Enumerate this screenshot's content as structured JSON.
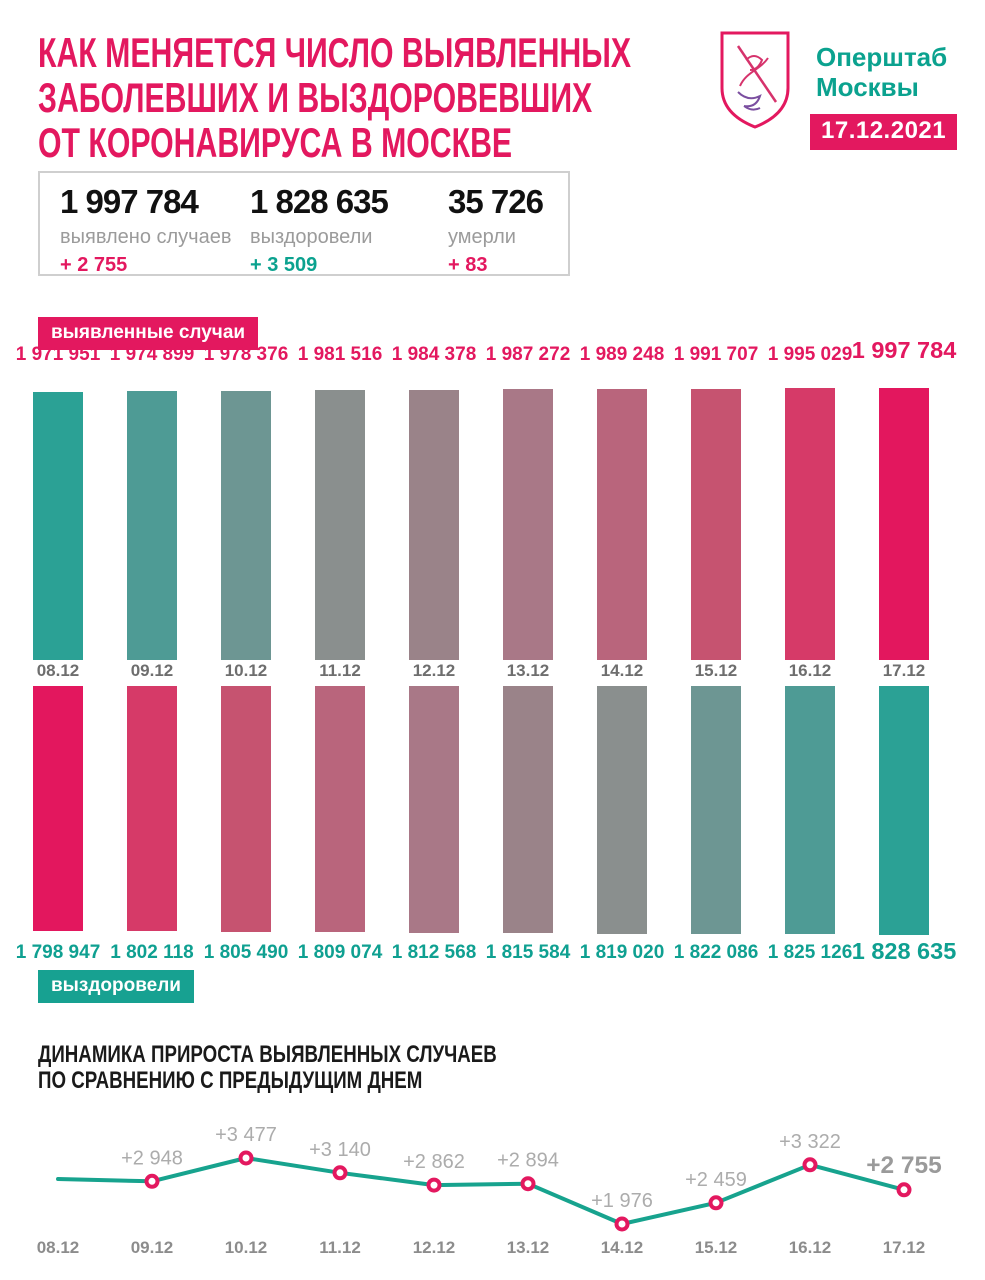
{
  "header": {
    "title_lines": [
      "КАК МЕНЯЕТСЯ ЧИСЛО ВЫЯВЛЕННЫХ",
      "ЗАБОЛЕВШИХ И ВЫЗДОРОВЕВШИХ",
      "ОТ КОРОНАВИРУСА В МОСКВЕ"
    ],
    "org_name_lines": [
      "Оперштаб",
      "Москвы"
    ],
    "date_badge": "17.12.2021",
    "logo": "moscow-coat-of-arms"
  },
  "summary": {
    "cases": {
      "value": "1 997 784",
      "label": "выявлено случаев",
      "delta": "+ 2 755"
    },
    "recovered": {
      "value": "1 828 635",
      "label": "выздоровели",
      "delta": "+ 3 509"
    },
    "deaths": {
      "value": "35 726",
      "label": "умерли",
      "delta": "+ 83"
    }
  },
  "colors": {
    "accent_pink": "#E3185F",
    "accent_teal": "#0BA28F",
    "teal_badge": "#17A191",
    "line_stroke": "#17A38E",
    "marker_ring": "#E3185F",
    "point_label_gray": "#ACACAC",
    "point_label_big_gray": "#9A9A9A",
    "date_gray": "#6E6E6E",
    "axis_gray": "#8C8C8C"
  },
  "chart_data": [
    {
      "type": "bar",
      "name": "cases-cumulative",
      "legend": "выявленные случаи",
      "categories": [
        "08.12",
        "09.12",
        "10.12",
        "11.12",
        "12.12",
        "13.12",
        "14.12",
        "15.12",
        "16.12",
        "17.12"
      ],
      "values": [
        1971951,
        1974899,
        1978376,
        1981516,
        1984378,
        1987272,
        1989248,
        1991707,
        1995029,
        1997784
      ],
      "value_labels": [
        "1 971 951",
        "1 974 899",
        "1 978 376",
        "1 981 516",
        "1 984 378",
        "1 987 272",
        "1 989 248",
        "1 991 707",
        "1 995 029",
        "1 997 784"
      ],
      "bar_colors": [
        "#2BA195",
        "#4E9B95",
        "#6D9693",
        "#8A8F8E",
        "#9A8389",
        "#A97887",
        "#B9657C",
        "#C65370",
        "#D63A68",
        "#E3175E"
      ],
      "direction": "up",
      "grid": false,
      "value_axis_hidden": true
    },
    {
      "type": "bar",
      "name": "recovered-cumulative",
      "legend": "выздоровели",
      "categories": [
        "08.12",
        "09.12",
        "10.12",
        "11.12",
        "12.12",
        "13.12",
        "14.12",
        "15.12",
        "16.12",
        "17.12"
      ],
      "values": [
        1798947,
        1802118,
        1805490,
        1809074,
        1812568,
        1815584,
        1819020,
        1822086,
        1825126,
        1828635
      ],
      "value_labels": [
        "1 798 947",
        "1 802 118",
        "1 805 490",
        "1 809 074",
        "1 812 568",
        "1 815 584",
        "1 819 020",
        "1 822 086",
        "1 825 126",
        "1 828 635"
      ],
      "bar_colors": [
        "#E3175E",
        "#D63A68",
        "#C65370",
        "#B9657C",
        "#A97887",
        "#9A8389",
        "#8A8F8E",
        "#6D9693",
        "#4E9B95",
        "#2BA195"
      ],
      "direction": "down",
      "grid": false,
      "value_axis_hidden": true
    },
    {
      "type": "line",
      "name": "daily-increase",
      "title_lines": [
        "ДИНАМИКА ПРИРОСТА ВЫЯВЛЕННЫХ СЛУЧАЕВ",
        "ПО СРАВНЕНИЮ С ПРЕДЫДУЩИМ ДНЕМ"
      ],
      "categories": [
        "08.12",
        "09.12",
        "10.12",
        "11.12",
        "12.12",
        "13.12",
        "14.12",
        "15.12",
        "16.12",
        "17.12"
      ],
      "values": [
        3000,
        2948,
        3477,
        3140,
        2862,
        2894,
        1976,
        2459,
        3322,
        2755
      ],
      "value_labels": [
        "",
        "+2 948",
        "+3 477",
        "+3 140",
        "+2 862",
        "+2 894",
        "+1 976",
        "+2 459",
        "+3 322",
        "+2 755"
      ],
      "first_point_unlabeled": true,
      "first_value_estimated": true,
      "grid": false,
      "value_axis_hidden": true
    }
  ]
}
